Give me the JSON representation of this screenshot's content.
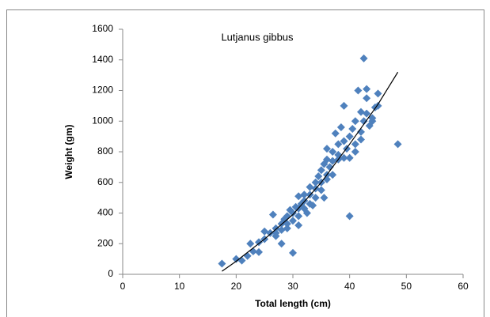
{
  "chart_data": {
    "type": "scatter",
    "title": "Lutjanus  gibbus",
    "x_label": "Total length (cm)",
    "y_label": "Weight (gm)",
    "xlim": [
      0,
      60
    ],
    "xticks": [
      0,
      10,
      20,
      30,
      40,
      50,
      60
    ],
    "ylim": [
      0,
      1600
    ],
    "yticks": [
      0,
      200,
      400,
      600,
      800,
      1000,
      1200,
      1400,
      1600
    ],
    "color": "#4f81bd",
    "x": [
      17.5,
      20,
      21,
      22,
      22.5,
      23,
      24,
      24,
      25,
      25,
      26,
      26.5,
      27,
      27,
      28,
      28,
      28.5,
      29,
      29,
      29.5,
      30,
      30,
      30,
      30.5,
      31,
      31,
      31.5,
      31,
      32,
      32,
      32.5,
      33,
      33,
      33.5,
      34,
      34,
      34.5,
      35,
      35,
      35.5,
      35.5,
      36,
      36,
      36.5,
      37,
      37,
      37.5,
      38,
      38,
      38.5,
      39,
      39,
      39.5,
      40,
      40,
      40.5,
      41,
      41,
      41.5,
      42,
      42,
      42.5,
      42.5,
      43,
      43,
      43.5,
      44,
      44.5,
      45,
      45,
      48.5,
      37,
      38,
      36,
      34,
      33,
      32,
      28,
      27,
      29,
      31,
      35,
      36,
      39,
      40,
      41,
      43,
      44,
      42
    ],
    "y": [
      70,
      100,
      90,
      120,
      200,
      150,
      210,
      145,
      230,
      280,
      270,
      390,
      300,
      250,
      330,
      200,
      360,
      380,
      300,
      420,
      140,
      400,
      350,
      440,
      380,
      320,
      460,
      510,
      430,
      480,
      400,
      520,
      570,
      450,
      600,
      500,
      640,
      550,
      680,
      500,
      720,
      820,
      620,
      700,
      740,
      650,
      920,
      780,
      850,
      960,
      1100,
      760,
      820,
      900,
      380,
      950,
      1000,
      850,
      1200,
      1060,
      930,
      1410,
      1000,
      1150,
      1050,
      970,
      1000,
      1090,
      1180,
      1100,
      850,
      800,
      750,
      650,
      560,
      460,
      520,
      290,
      270,
      330,
      430,
      600,
      750,
      870,
      760,
      800,
      1210,
      1020,
      880
    ],
    "trendline": {
      "color": "#000000",
      "x": [
        17.5,
        20,
        25,
        30,
        35,
        40,
        45,
        48.5
      ],
      "y": [
        20,
        85,
        230,
        390,
        600,
        850,
        1110,
        1320
      ]
    }
  }
}
